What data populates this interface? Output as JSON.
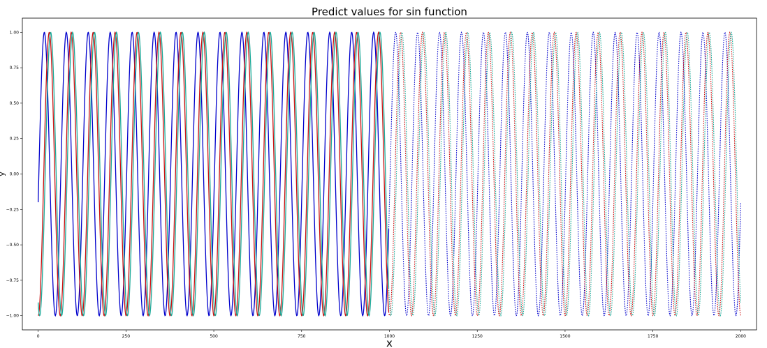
{
  "chart_data": {
    "type": "line",
    "title": "Predict values for sin function",
    "xlabel": "x",
    "ylabel": "y",
    "xlim": [
      -45,
      2045
    ],
    "ylim": [
      -1.1,
      1.1
    ],
    "xticks": [
      0,
      250,
      500,
      750,
      1000,
      1250,
      1500,
      1750,
      2000
    ],
    "yticks": [
      -1.0,
      -0.75,
      -0.5,
      -0.25,
      0.0,
      0.25,
      0.5,
      0.75,
      1.0
    ],
    "xtick_labels": [
      "0",
      "250",
      "500",
      "750",
      "1000",
      "1250",
      "1500",
      "1750",
      "2000"
    ],
    "ytick_labels": [
      "−1.00",
      "−0.75",
      "−0.50",
      "−0.25",
      "0.00",
      "0.25",
      "0.50",
      "0.75",
      "1.00"
    ],
    "grid": false,
    "legend": null,
    "series": [
      {
        "color": "#0000cc",
        "observed_range": [
          0,
          998
        ],
        "predicted_range": [
          998,
          2000
        ],
        "observed_style": "solid",
        "predicted_style": "dotted",
        "period": 62.5,
        "phase_deg": -11.5,
        "amplitude": 1.0
      },
      {
        "color": "#cc1111",
        "observed_range": [
          0,
          998
        ],
        "predicted_range": [
          998,
          2000
        ],
        "observed_style": "solid",
        "predicted_style": "dotted",
        "period": 62.5,
        "phase_deg": -92,
        "amplitude": 1.0
      },
      {
        "color": "#1aaa99",
        "observed_range": [
          0,
          998
        ],
        "predicted_range": [
          998,
          2000
        ],
        "observed_style": "solid",
        "predicted_style": "dotted",
        "period": 62.5,
        "phase_deg": -115,
        "amplitude": 1.0
      }
    ],
    "observed_end_x": 998,
    "forecast_end_x": 2000
  }
}
